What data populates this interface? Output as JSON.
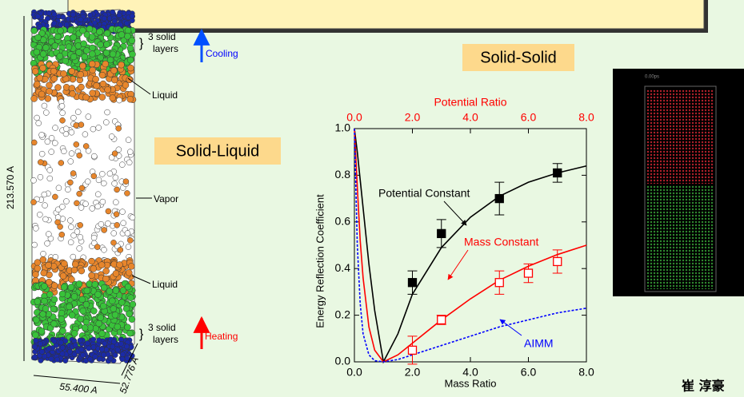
{
  "left_panel": {
    "title": "Solid-Liquid",
    "top_layers": [
      "3 solid",
      "layers"
    ],
    "cooling": "Cooling",
    "liquid_top": "Liquid",
    "vapor": "Vapor",
    "liquid_bottom": "Liquid",
    "bottom_layers": [
      "3 solid",
      "layers"
    ],
    "heating": "Heating",
    "height": "213.570 A",
    "width": "55.400 A",
    "depth": "52.776 A"
  },
  "chart_data": {
    "type": "line",
    "title": "Solid-Solid",
    "xlabel": "Mass Ratio",
    "x2label": "Potential Ratio",
    "x2color": "#ff0000",
    "ylabel": "Energy Reflection Coefficient",
    "xlim": [
      0,
      8
    ],
    "xticks": [
      {
        "value": 0,
        "label": "0.0"
      },
      {
        "value": 2,
        "label": "2.0"
      },
      {
        "value": 4,
        "label": "4.0"
      },
      {
        "value": 6,
        "label": "6.0"
      },
      {
        "value": 8,
        "label": "8.0"
      }
    ],
    "x2lim": [
      0,
      8
    ],
    "x2ticks": [
      {
        "value": 0,
        "label": "0.0"
      },
      {
        "value": 2,
        "label": "2.0"
      },
      {
        "value": 4,
        "label": "4.0"
      },
      {
        "value": 6,
        "label": "6.0"
      },
      {
        "value": 8,
        "label": "8.0"
      }
    ],
    "ylim": [
      0,
      1
    ],
    "yticks": [
      {
        "value": 0,
        "label": "0.0"
      },
      {
        "value": 0.2,
        "label": "0.2"
      },
      {
        "value": 0.4,
        "label": "0.4"
      },
      {
        "value": 0.6,
        "label": "0.6"
      },
      {
        "value": 0.8,
        "label": "0.8"
      },
      {
        "value": 1,
        "label": "1.0"
      }
    ],
    "series": [
      {
        "name": "Potential Constant",
        "color": "#000000",
        "style": "solid",
        "x": [
          0,
          0.1,
          0.2,
          0.3,
          0.5,
          0.7,
          1.0,
          1.5,
          2,
          3,
          4,
          5,
          6,
          7,
          8
        ],
        "values": [
          1.0,
          0.9,
          0.78,
          0.66,
          0.42,
          0.22,
          0.0,
          0.12,
          0.29,
          0.49,
          0.62,
          0.71,
          0.77,
          0.81,
          0.84
        ]
      },
      {
        "name": "Mass Constant",
        "color": "#ff0000",
        "style": "solid",
        "x": [
          0,
          0.1,
          0.2,
          0.3,
          0.5,
          0.7,
          1.0,
          1.5,
          2,
          3,
          4,
          5,
          6,
          7,
          8
        ],
        "values": [
          1.0,
          0.75,
          0.52,
          0.36,
          0.15,
          0.05,
          0.0,
          0.03,
          0.08,
          0.18,
          0.27,
          0.35,
          0.41,
          0.46,
          0.5
        ]
      },
      {
        "name": "AIMM",
        "color": "#0000ff",
        "style": "dashed",
        "x": [
          0,
          0.1,
          0.2,
          0.3,
          0.5,
          0.7,
          1.0,
          1.5,
          2,
          3,
          4,
          5,
          6,
          7,
          8
        ],
        "values": [
          1.0,
          0.5,
          0.25,
          0.12,
          0.03,
          0.005,
          0.0,
          0.01,
          0.03,
          0.07,
          0.11,
          0.15,
          0.18,
          0.21,
          0.23
        ]
      },
      {
        "color": "#000000",
        "marker": "filled-square",
        "x": [
          2,
          3,
          5,
          7
        ],
        "values": [
          0.34,
          0.55,
          0.7,
          0.81
        ],
        "errors": [
          0.05,
          0.06,
          0.07,
          0.04
        ]
      },
      {
        "color": "#ff0000",
        "marker": "open-square",
        "x": [
          2,
          3,
          5,
          6,
          7
        ],
        "values": [
          0.05,
          0.18,
          0.34,
          0.38,
          0.43
        ],
        "errors": [
          0.06,
          0.02,
          0.05,
          0.04,
          0.05
        ]
      }
    ]
  },
  "right_panel": {
    "timestamp": "0.00ps"
  },
  "author": "崔 淳豪"
}
